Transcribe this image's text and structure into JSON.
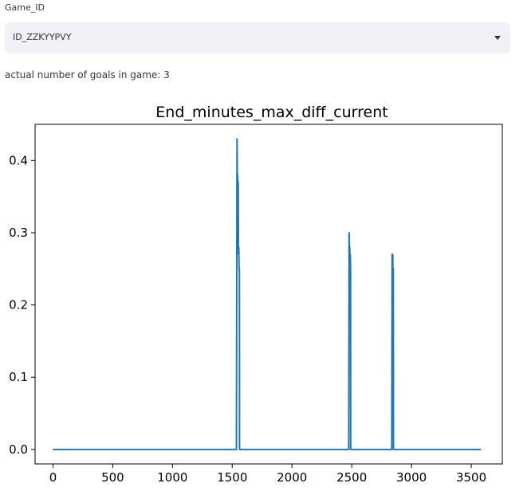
{
  "selector": {
    "label": "Game_ID",
    "value": "ID_ZZKYYPVY",
    "caret_icon": "chevron-down-icon"
  },
  "goals_text": "actual number of goals in game: 3",
  "chart_data": {
    "type": "line",
    "title": "End_minutes_max_diff_current",
    "xlabel": "",
    "ylabel": "",
    "xlim": [
      -150,
      3760
    ],
    "ylim": [
      -0.02,
      0.45
    ],
    "x_ticks": [
      0,
      500,
      1000,
      1500,
      2000,
      2500,
      3000,
      3500
    ],
    "y_ticks": [
      0.0,
      0.1,
      0.2,
      0.3,
      0.4
    ],
    "y_tick_labels": [
      "0.0",
      "0.1",
      "0.2",
      "0.3",
      "0.4"
    ],
    "grid": false,
    "line_color": "#1f77b4",
    "series": [
      {
        "x": [
          0,
          1535,
          1540,
          1543,
          1545,
          1548,
          1550,
          1552,
          1555,
          1557,
          1560,
          1561,
          2475,
          2478,
          2480,
          2483,
          2485,
          2488,
          2490,
          2491,
          2835,
          2838,
          2840,
          2843,
          2845,
          2848,
          2849,
          3580
        ],
        "y": [
          0,
          0,
          0.43,
          0.35,
          0.38,
          0.28,
          0.37,
          0.27,
          0.28,
          0.25,
          0.25,
          0,
          0,
          0.3,
          0.25,
          0.28,
          0.26,
          0.27,
          0.25,
          0,
          0,
          0.27,
          0.26,
          0.27,
          0.24,
          0.25,
          0,
          0
        ]
      }
    ]
  }
}
